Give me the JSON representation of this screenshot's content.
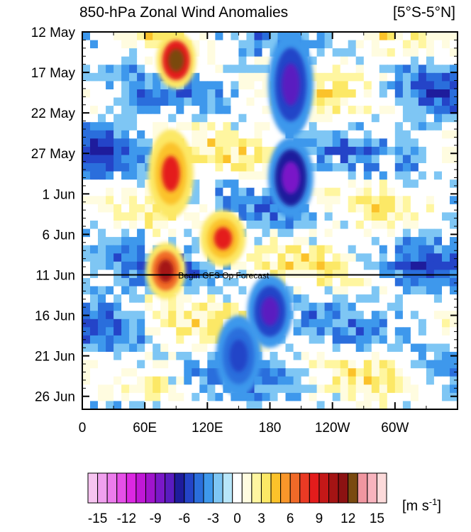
{
  "chart_data": {
    "type": "heatmap",
    "title": "850-hPa Zonal Wind Anomalies",
    "region_label": "[5°S-5°N]",
    "x_ticks": [
      "0",
      "60E",
      "120E",
      "180",
      "120W",
      "60W"
    ],
    "y_ticks": [
      "12 May",
      "17 May",
      "22 May",
      "27 May",
      "1 Jun",
      "6 Jun",
      "11 Jun",
      "16 Jun",
      "21 Jun",
      "26 Jun"
    ],
    "x_range_deg_east": [
      0,
      360
    ],
    "y_range": [
      "12 May",
      "26 Jun"
    ],
    "forecast_line": {
      "label": "Begin GFS Op Forecast",
      "date": "11 Jun"
    },
    "colorbar": {
      "units_base": "[m s",
      "units_exp": "-1",
      "units_close": "]",
      "tick_labels": [
        "-15",
        "-12",
        "-9",
        "-6",
        "-3",
        "0",
        "3",
        "6",
        "9",
        "12",
        "15"
      ],
      "levels": [
        -15,
        -14,
        -13,
        -12,
        -11,
        -10,
        -9,
        -8,
        -7,
        -6,
        -5,
        -4,
        -3,
        -2,
        -1,
        1,
        2,
        3,
        4,
        5,
        6,
        7,
        8,
        9,
        10,
        11,
        12,
        13,
        14,
        15
      ],
      "colors": [
        "#f6c4f0",
        "#f0a0ee",
        "#ec7cec",
        "#e650e8",
        "#dc28e2",
        "#c018d6",
        "#a014cc",
        "#7a18c8",
        "#5a1cc0",
        "#1e1c9c",
        "#2444c8",
        "#2a6edc",
        "#3e98ec",
        "#7ec6f4",
        "#b8e6fa",
        "#ffffff",
        "#fffce0",
        "#fff6a0",
        "#fce866",
        "#fbc22a",
        "#f8962a",
        "#f06a28",
        "#ea3a24",
        "#e41c1c",
        "#c41818",
        "#a41414",
        "#8c1212",
        "#7a4a10",
        "#f096a0",
        "#f8b4be",
        "#fcdada"
      ]
    },
    "anomaly_features": [
      {
        "name": "westerly burst",
        "lon_east": 90,
        "start": "12 May",
        "end": "19 May",
        "peak": 12
      },
      {
        "name": "westerly burst",
        "lon_east": 85,
        "start": "24 May",
        "end": "4 Jun",
        "peak": 8
      },
      {
        "name": "westerly burst",
        "lon_east": 135,
        "start": "3 Jun",
        "end": "10 Jun",
        "peak": 8
      },
      {
        "name": "westerly burst",
        "lon_east": 80,
        "start": "7 Jun",
        "end": "14 Jun",
        "peak": 10
      },
      {
        "name": "easterly anomaly",
        "lon_east": 200,
        "start": "12 May",
        "end": "25 May",
        "peak": -7
      },
      {
        "name": "easterly anomaly",
        "lon_east": 200,
        "start": "25 May",
        "end": "4 Jun",
        "peak": -8
      },
      {
        "name": "easterly anomaly",
        "lon_east": 180,
        "start": "11 Jun",
        "end": "20 Jun",
        "peak": -7
      },
      {
        "name": "easterly anomaly",
        "lon_east": 150,
        "start": "16 Jun",
        "end": "26 Jun",
        "peak": -5
      }
    ]
  }
}
